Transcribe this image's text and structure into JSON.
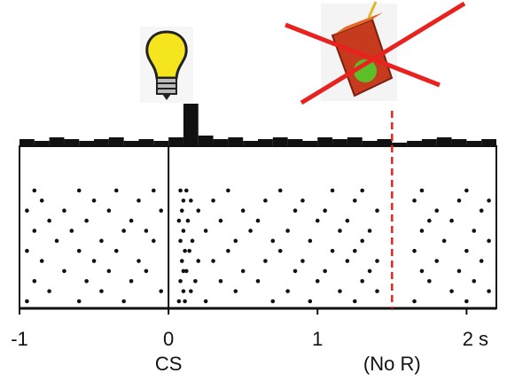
{
  "chart_data": {
    "type": "raster",
    "xlim": [
      -1,
      2.2
    ],
    "xticks": [
      -1,
      0,
      1,
      {
        "value": 2,
        "label": "2 s"
      }
    ],
    "color": "#111111",
    "annotations": [
      {
        "x": 0,
        "text": "CS"
      },
      {
        "x": 1.5,
        "text": "(No R)",
        "color": "#e8231f"
      }
    ],
    "histogram": {
      "bins": [
        -1,
        -0.9,
        -0.8,
        -0.7,
        -0.6,
        -0.5,
        -0.4,
        -0.3,
        -0.2,
        -0.1,
        0,
        0.1,
        0.2,
        0.3,
        0.4,
        0.5,
        0.6,
        0.7,
        0.8,
        0.9,
        1,
        1.1,
        1.2,
        1.3,
        1.4,
        1.5,
        1.6,
        1.7,
        1.8,
        1.9,
        2,
        2.1,
        2.2
      ],
      "counts": [
        4,
        3,
        5,
        4,
        3,
        4,
        5,
        3,
        4,
        3,
        5,
        24,
        6,
        4,
        5,
        3,
        4,
        5,
        4,
        3,
        5,
        4,
        5,
        3,
        4,
        2,
        3,
        4,
        5,
        4,
        3,
        4
      ],
      "ylim": [
        0,
        25
      ]
    },
    "trials": [
      [
        -0.9,
        -0.6,
        -0.35,
        -0.1,
        0.08,
        0.12,
        0.4,
        0.75,
        1.1,
        1.3,
        1.7,
        2.0
      ],
      [
        -0.85,
        -0.5,
        -0.2,
        0.1,
        0.15,
        0.3,
        0.65,
        0.9,
        1.25,
        1.65,
        1.95,
        2.15
      ],
      [
        -0.95,
        -0.7,
        -0.4,
        -0.05,
        0.09,
        0.2,
        0.5,
        0.85,
        1.05,
        1.4,
        1.8,
        2.1
      ],
      [
        -0.8,
        -0.55,
        -0.25,
        0.07,
        0.13,
        0.35,
        0.6,
        1.0,
        1.2,
        1.75,
        1.9
      ],
      [
        -0.9,
        -0.65,
        -0.3,
        -0.15,
        0.1,
        0.25,
        0.55,
        0.8,
        1.15,
        1.35,
        1.7,
        2.05
      ],
      [
        -0.75,
        -0.45,
        -0.1,
        0.08,
        0.16,
        0.45,
        0.7,
        0.95,
        1.3,
        1.85,
        2.15
      ],
      [
        -0.95,
        -0.6,
        -0.35,
        0.11,
        0.14,
        0.4,
        0.75,
        1.1,
        1.25,
        1.65,
        2.0
      ],
      [
        -0.85,
        -0.5,
        -0.2,
        0.09,
        0.2,
        0.3,
        0.65,
        0.9,
        1.2,
        1.4,
        1.8,
        2.1
      ],
      [
        -0.7,
        -0.4,
        -0.15,
        0.1,
        0.12,
        0.5,
        0.85,
        1.05,
        1.35,
        1.7,
        1.95
      ],
      [
        -0.9,
        -0.55,
        -0.25,
        0.08,
        0.18,
        0.35,
        0.6,
        1.0,
        1.3,
        1.75,
        2.05
      ],
      [
        -0.8,
        -0.45,
        -0.05,
        0.1,
        0.15,
        0.45,
        0.8,
        1.15,
        1.4,
        1.9,
        2.15
      ],
      [
        -0.95,
        -0.6,
        -0.3,
        0.07,
        0.11,
        0.25,
        0.7,
        0.95,
        1.25,
        1.65,
        2.0
      ]
    ]
  }
}
